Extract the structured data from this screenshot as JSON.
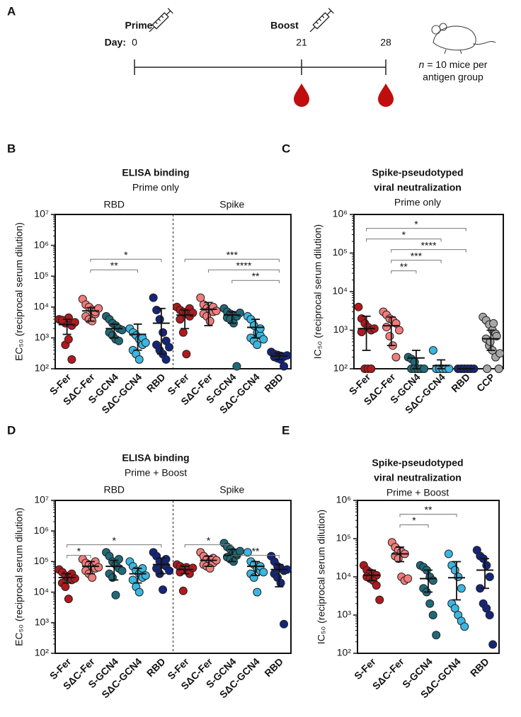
{
  "timeline": {
    "panel": "A",
    "prime": "Prime",
    "boost": "Boost",
    "day_label": "Day:",
    "days": [
      0,
      21,
      28
    ],
    "note_var": "n",
    "note": "= 10 mice per",
    "note2": "antigen group"
  },
  "chart_data": [
    {
      "type": "dot-plot",
      "panel": "B",
      "title": [
        "ELISA binding"
      ],
      "subtitle": "Prime only",
      "groups": [
        "RBD",
        "Spike"
      ],
      "ylabel": "EC₅₀ (reciprocal serum dilution)",
      "log_scale": true,
      "ylim": [
        100,
        10000000
      ],
      "yticks": [
        {
          "value": 100,
          "label": "10²"
        },
        {
          "value": 1000,
          "label": "10³"
        },
        {
          "value": 10000,
          "label": "10⁴"
        },
        {
          "value": 100000,
          "label": "10⁵"
        },
        {
          "value": 1000000,
          "label": "10⁶"
        },
        {
          "value": 10000000,
          "label": "10⁷"
        }
      ],
      "categories": [
        "S-Fer",
        "SΔC-Fer",
        "S-GCN4",
        "SΔC-GCN4",
        "RBD",
        "S-Fer",
        "SΔC-Fer",
        "S-GCN4",
        "SΔC-GCN4",
        "RBD"
      ],
      "colors": [
        "#b0191e",
        "#f27c7c",
        "#1f6a78",
        "#3bb6e0",
        "#15257a",
        "#b0191e",
        "#f27c7c",
        "#1f6a78",
        "#3bb6e0",
        "#15257a"
      ],
      "points": [
        [
          4000,
          3500,
          3000,
          4500,
          2500,
          3800,
          600,
          900,
          200,
          3200
        ],
        [
          18000,
          12000,
          10000,
          8000,
          6000,
          5000,
          4000,
          3500,
          7000,
          9000
        ],
        [
          5000,
          4000,
          3000,
          2500,
          2000,
          1500,
          1200,
          900,
          800,
          1800
        ],
        [
          2000,
          1500,
          1200,
          900,
          600,
          400,
          300,
          200,
          1000,
          700
        ],
        [
          20000,
          8000,
          4000,
          1500,
          800,
          600,
          400,
          300,
          200,
          500
        ],
        [
          10000,
          8000,
          7000,
          6000,
          5000,
          4000,
          1500,
          300,
          9000,
          6500
        ],
        [
          20000,
          12000,
          9000,
          8000,
          7000,
          6000,
          5000,
          3500,
          10000,
          7500
        ],
        [
          9000,
          7000,
          6000,
          5500,
          5000,
          4500,
          4000,
          3000,
          120,
          6500
        ],
        [
          5000,
          4000,
          2500,
          1500,
          1200,
          1000,
          800,
          600,
          2000,
          900
        ],
        [
          350,
          300,
          280,
          260,
          250,
          240,
          220,
          200,
          120,
          270
        ]
      ],
      "mean": [
        2700,
        7500,
        2000,
        1300,
        3000,
        5500,
        8500,
        5500,
        2200,
        260
      ],
      "low": [
        1300,
        3500,
        1000,
        400,
        300,
        2000,
        2500,
        3000,
        1000,
        200
      ],
      "high": [
        4000,
        9500,
        2800,
        2800,
        9000,
        8000,
        14000,
        7000,
        4000,
        320
      ],
      "comparisons": [
        {
          "from": 1,
          "to": 4,
          "label": "*"
        },
        {
          "from": 1,
          "to": 3,
          "label": "**"
        },
        {
          "from": 5,
          "to": 9,
          "label": "***"
        },
        {
          "from": 6,
          "to": 9,
          "label": "****"
        },
        {
          "from": 7,
          "to": 9,
          "label": "**"
        }
      ]
    },
    {
      "type": "dot-plot",
      "panel": "C",
      "title": [
        "Spike-pseudotyped",
        "viral neutralization"
      ],
      "subtitle": "Prime only",
      "ylabel": "IC₅₀ (reciprocal serum dilution)",
      "log_scale": true,
      "ylim": [
        100,
        1000000
      ],
      "yticks": [
        {
          "value": 100,
          "label": "10²"
        },
        {
          "value": 1000,
          "label": "10³"
        },
        {
          "value": 10000,
          "label": "10⁴"
        },
        {
          "value": 100000,
          "label": "10⁵"
        },
        {
          "value": 1000000,
          "label": "10⁶"
        }
      ],
      "categories": [
        "S-Fer",
        "SΔC-Fer",
        "S-GCN4",
        "SΔC-GCN4",
        "RBD",
        "CCP"
      ],
      "colors": [
        "#b0191e",
        "#f27c7c",
        "#1f6a78",
        "#3bb6e0",
        "#15257a",
        "#a6a6a6"
      ],
      "points": [
        [
          4000,
          2000,
          1500,
          1200,
          1000,
          900,
          100,
          100,
          100,
          1100
        ],
        [
          3000,
          2500,
          2000,
          1800,
          1500,
          1200,
          700,
          400,
          200,
          1000
        ],
        [
          200,
          180,
          150,
          100,
          100,
          100,
          100,
          100,
          100,
          100
        ],
        [
          300,
          100,
          100,
          100,
          100,
          100,
          100,
          100,
          100,
          100
        ],
        [
          100,
          100,
          100,
          100,
          100,
          100,
          100,
          100,
          100,
          100
        ],
        [
          2200,
          1800,
          1400,
          1000,
          800,
          600,
          400,
          300,
          200,
          100,
          100,
          500,
          1500,
          700,
          250
        ]
      ],
      "mean": [
        1100,
        1300,
        190,
        120,
        100,
        600
      ],
      "low": [
        300,
        400,
        100,
        100,
        100,
        300
      ],
      "high": [
        2300,
        2200,
        300,
        170,
        100,
        1000
      ],
      "comparisons": [
        {
          "from": 0,
          "to": 4,
          "label": "*"
        },
        {
          "from": 0,
          "to": 3,
          "label": "*"
        },
        {
          "from": 1,
          "to": 4,
          "label": "****"
        },
        {
          "from": 1,
          "to": 3,
          "label": "***"
        },
        {
          "from": 1,
          "to": 2,
          "label": "**"
        }
      ]
    },
    {
      "type": "dot-plot",
      "panel": "D",
      "title": [
        "ELISA binding"
      ],
      "subtitle": "Prime + Boost",
      "groups": [
        "RBD",
        "Spike"
      ],
      "ylabel": "EC₅₀ (reciprocal serum dilution)",
      "log_scale": true,
      "ylim": [
        100,
        10000000
      ],
      "yticks": [
        {
          "value": 100,
          "label": "10²"
        },
        {
          "value": 1000,
          "label": "10³"
        },
        {
          "value": 10000,
          "label": "10⁴"
        },
        {
          "value": 100000,
          "label": "10⁵"
        },
        {
          "value": 1000000,
          "label": "10⁶"
        },
        {
          "value": 10000000,
          "label": "10⁷"
        }
      ],
      "categories": [
        "S-Fer",
        "SΔC-Fer",
        "S-GCN4",
        "SΔC-GCN4",
        "RBD",
        "S-Fer",
        "SΔC-Fer",
        "S-GCN4",
        "SΔC-GCN4",
        "RBD"
      ],
      "colors": [
        "#b0191e",
        "#f27c7c",
        "#1f6a78",
        "#3bb6e0",
        "#15257a",
        "#b0191e",
        "#f27c7c",
        "#1f6a78",
        "#3bb6e0",
        "#15257a"
      ],
      "points": [
        [
          55000,
          45000,
          35000,
          30000,
          25000,
          20000,
          15000,
          6000,
          40000,
          28000
        ],
        [
          120000,
          90000,
          80000,
          70000,
          60000,
          50000,
          40000,
          30000,
          100000,
          65000
        ],
        [
          200000,
          150000,
          100000,
          80000,
          60000,
          40000,
          30000,
          8000,
          120000,
          50000
        ],
        [
          100000,
          70000,
          50000,
          40000,
          30000,
          25000,
          15000,
          10000,
          60000,
          35000
        ],
        [
          200000,
          150000,
          100000,
          80000,
          70000,
          60000,
          40000,
          12000,
          120000,
          50000
        ],
        [
          80000,
          70000,
          60000,
          55000,
          50000,
          45000,
          11000,
          65000,
          40000,
          62000
        ],
        [
          200000,
          150000,
          120000,
          100000,
          90000,
          80000,
          70000,
          60000,
          130000,
          110000
        ],
        [
          400000,
          300000,
          250000,
          200000,
          160000,
          140000,
          120000,
          100000,
          180000,
          220000
        ],
        [
          200000,
          100000,
          80000,
          60000,
          50000,
          40000,
          30000,
          10000,
          70000,
          45000
        ],
        [
          150000,
          100000,
          70000,
          60000,
          50000,
          40000,
          30000,
          20000,
          900,
          55000
        ]
      ],
      "mean": [
        30000,
        70000,
        70000,
        40000,
        80000,
        55000,
        110000,
        160000,
        70000,
        55000
      ],
      "low": [
        20000,
        40000,
        25000,
        20000,
        40000,
        40000,
        70000,
        100000,
        35000,
        15000
      ],
      "high": [
        40000,
        100000,
        110000,
        60000,
        130000,
        70000,
        150000,
        250000,
        100000,
        80000
      ],
      "comparisons": [
        {
          "from": 0,
          "to": 4,
          "label": "*"
        },
        {
          "from": 0,
          "to": 1,
          "label": "*"
        },
        {
          "from": 5,
          "to": 7,
          "label": "*"
        },
        {
          "from": 7,
          "to": 9,
          "label": "**"
        }
      ]
    },
    {
      "type": "dot-plot",
      "panel": "E",
      "title": [
        "Spike-pseudotyped",
        "viral neutralization"
      ],
      "subtitle": "Prime + Boost",
      "ylabel": "IC₅₀ (reciprocal serum dilution)",
      "log_scale": true,
      "ylim": [
        100,
        1000000
      ],
      "yticks": [
        {
          "value": 100,
          "label": "10²"
        },
        {
          "value": 1000,
          "label": "10³"
        },
        {
          "value": 10000,
          "label": "10⁴"
        },
        {
          "value": 100000,
          "label": "10⁵"
        },
        {
          "value": 1000000,
          "label": "10⁶"
        }
      ],
      "categories": [
        "S-Fer",
        "SΔC-Fer",
        "S-GCN4",
        "SΔC-GCN4",
        "RBD"
      ],
      "colors": [
        "#b0191e",
        "#f27c7c",
        "#1f6a78",
        "#3bb6e0",
        "#15257a"
      ],
      "points": [
        [
          20000,
          15000,
          13000,
          12000,
          11000,
          10000,
          9000,
          8000,
          6000,
          2500
        ],
        [
          80000,
          60000,
          50000,
          45000,
          40000,
          35000,
          30000,
          10000,
          8000,
          9000
        ],
        [
          20000,
          18000,
          15000,
          10000,
          8000,
          5000,
          4000,
          2000,
          1000,
          300
        ],
        [
          40000,
          20000,
          15000,
          10000,
          5000,
          2000,
          1500,
          1000,
          700,
          500
        ],
        [
          50000,
          35000,
          30000,
          20000,
          10000,
          5000,
          2000,
          1500,
          1000,
          170
        ]
      ],
      "mean": [
        11000,
        40000,
        9000,
        9500,
        15000
      ],
      "low": [
        8000,
        25000,
        4000,
        2500,
        5000
      ],
      "high": [
        15000,
        60000,
        15000,
        25000,
        30000
      ],
      "comparisons": [
        {
          "from": 1,
          "to": 3,
          "label": "**"
        },
        {
          "from": 1,
          "to": 2,
          "label": "*"
        }
      ]
    }
  ]
}
